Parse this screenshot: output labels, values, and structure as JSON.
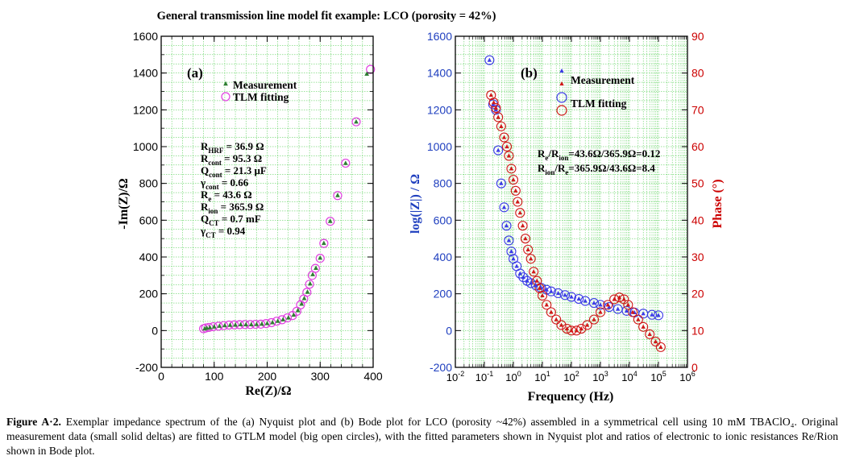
{
  "figure_title": "General transmission line model fit example:  LCO (porosity = 42%)",
  "caption": {
    "label": "Figure A·2.",
    "text": " Exemplar impedance spectrum of the (a) Nyquist plot and (b) Bode plot for LCO (porosity ~42%) assembled in a symmetrical cell using 10 mM TBAClO₄. Original measurement data (small solid deltas) are fitted to GTLM model (big open circles), with the fitted parameters shown in Nyquist plot and ratios of electronic to ionic resistances Re/Rion shown in Bode plot."
  },
  "colors": {
    "grid": "#3cc83c",
    "measurement_a": "#2e7d32",
    "fit_a": "#e040e0",
    "magnitude": "#3a3ae6",
    "phase": "#d01818",
    "phase_axis": "#cc0000",
    "mag_axis": "#1f3fbf"
  },
  "chart_data": [
    {
      "type": "scatter",
      "panel_label": "(a)",
      "xlabel": "Re(Z)/Ω",
      "ylabel": "-Im(Z)/Ω",
      "xlim": [
        0,
        400
      ],
      "ylim": [
        -200,
        1600
      ],
      "xticks": [
        0,
        100,
        200,
        300,
        400
      ],
      "yticks": [
        -200,
        0,
        200,
        400,
        600,
        800,
        1000,
        1200,
        1400,
        1600
      ],
      "grid": true,
      "legend": [
        "Measurement",
        "TLM fitting"
      ],
      "legend_position": "top-left",
      "parameters": [
        {
          "name": "R",
          "sub": "HRF",
          "value": " = 36.9 Ω"
        },
        {
          "name": "R",
          "sub": "cont",
          "value": " = 95.3 Ω"
        },
        {
          "name": "Q",
          "sub": "cont",
          "value": " = 21.3 μF"
        },
        {
          "name": "γ",
          "sub": "cont",
          "value": " = 0.66"
        },
        {
          "name": "R",
          "sub": "e",
          "value": " = 43.6 Ω"
        },
        {
          "name": "R",
          "sub": "ion",
          "value": " = 365.9 Ω"
        },
        {
          "name": "Q",
          "sub": "CT",
          "value": " = 0.7 mF"
        },
        {
          "name": "γ",
          "sub": "CT",
          "value": " = 0.94"
        }
      ],
      "series": [
        {
          "name": "Measurement",
          "marker": "triangle",
          "points": [
            [
              82,
              10
            ],
            [
              86,
              14
            ],
            [
              92,
              17
            ],
            [
              100,
              21
            ],
            [
              110,
              25
            ],
            [
              120,
              28
            ],
            [
              130,
              30
            ],
            [
              140,
              31
            ],
            [
              150,
              33
            ],
            [
              160,
              33
            ],
            [
              170,
              33
            ],
            [
              180,
              34
            ],
            [
              190,
              36
            ],
            [
              200,
              39
            ],
            [
              210,
              44
            ],
            [
              220,
              52
            ],
            [
              230,
              60
            ],
            [
              240,
              70
            ],
            [
              250,
              85
            ],
            [
              258,
              110
            ],
            [
              265,
              145
            ],
            [
              270,
              175
            ],
            [
              276,
              210
            ],
            [
              281,
              255
            ],
            [
              286,
              305
            ],
            [
              292,
              340
            ],
            [
              300,
              395
            ],
            [
              307,
              475
            ],
            [
              319,
              595
            ],
            [
              333,
              735
            ],
            [
              348,
              910
            ],
            [
              368,
              1135
            ],
            [
              388,
              1395
            ]
          ]
        },
        {
          "name": "TLM fitting",
          "marker": "circle",
          "points": [
            [
              80,
              10
            ],
            [
              84,
              14
            ],
            [
              90,
              17
            ],
            [
              98,
              21
            ],
            [
              108,
              24
            ],
            [
              118,
              27
            ],
            [
              128,
              30
            ],
            [
              138,
              31
            ],
            [
              148,
              32
            ],
            [
              158,
              33
            ],
            [
              168,
              33
            ],
            [
              178,
              34
            ],
            [
              188,
              35
            ],
            [
              198,
              38
            ],
            [
              208,
              43
            ],
            [
              218,
              51
            ],
            [
              228,
              59
            ],
            [
              238,
              69
            ],
            [
              248,
              82
            ],
            [
              256,
              105
            ],
            [
              263,
              140
            ],
            [
              269,
              172
            ],
            [
              275,
              208
            ],
            [
              280,
              252
            ],
            [
              285,
              300
            ],
            [
              291,
              338
            ],
            [
              300,
              393
            ],
            [
              307,
              474
            ],
            [
              319,
              594
            ],
            [
              333,
              734
            ],
            [
              348,
              910
            ],
            [
              368,
              1135
            ],
            [
              395,
              1420
            ]
          ]
        }
      ]
    },
    {
      "type": "scatter",
      "panel_label": "(b)",
      "xlabel": "Frequency (Hz)",
      "ylabel": "log(|Z|) / Ω",
      "y2label": "Phase (°)",
      "x_scale": "log",
      "xlim": [
        0.01,
        1000000
      ],
      "xtick_labels": [
        "10-2",
        "10-1",
        "100",
        "101",
        "102",
        "103",
        "104",
        "105",
        "106"
      ],
      "ylim": [
        -200,
        1600
      ],
      "yticks": [
        -200,
        0,
        200,
        400,
        600,
        800,
        1000,
        1200,
        1400,
        1600
      ],
      "y2lim": [
        0,
        90
      ],
      "y2ticks": [
        0,
        10,
        20,
        30,
        40,
        50,
        60,
        70,
        80,
        90
      ],
      "grid": true,
      "legend": [
        "Measurement",
        "TLM fitting"
      ],
      "legend_position": "top-right",
      "ratios": [
        {
          "a": "R",
          "a_sub": "e",
          "b": "/R",
          "b_sub": "ion",
          "value": "=43.6Ω/365.9Ω=0.12"
        },
        {
          "a": "R",
          "a_sub": "ion",
          "b": "/R",
          "b_sub": "e",
          "value": "=365.9Ω/43.6Ω=8.4"
        }
      ],
      "series": [
        {
          "name": "|Z|",
          "axis": "left",
          "points": [
            [
              0.15,
              1470
            ],
            [
              0.2,
              1230
            ],
            [
              0.25,
              1200
            ],
            [
              0.3,
              980
            ],
            [
              0.38,
              800
            ],
            [
              0.48,
              670
            ],
            [
              0.58,
              570
            ],
            [
              0.7,
              490
            ],
            [
              0.85,
              430
            ],
            [
              1.0,
              390
            ],
            [
              1.3,
              350
            ],
            [
              1.7,
              310
            ],
            [
              2.2,
              290
            ],
            [
              3,
              270
            ],
            [
              4,
              258
            ],
            [
              6,
              245
            ],
            [
              9,
              233
            ],
            [
              14,
              222
            ],
            [
              20,
              213
            ],
            [
              35,
              203
            ],
            [
              60,
              193
            ],
            [
              100,
              183
            ],
            [
              180,
              172
            ],
            [
              300,
              161
            ],
            [
              600,
              150
            ],
            [
              1000,
              140
            ],
            [
              2000,
              128
            ],
            [
              4000,
              117
            ],
            [
              8000,
              107
            ],
            [
              15000,
              98
            ],
            [
              30000,
              92
            ],
            [
              60000,
              86
            ],
            [
              100000,
              83
            ]
          ]
        },
        {
          "name": "Phase",
          "axis": "right",
          "points": [
            [
              0.17,
              74
            ],
            [
              0.21,
              72
            ],
            [
              0.25,
              70.5
            ],
            [
              0.3,
              68
            ],
            [
              0.38,
              65.5
            ],
            [
              0.48,
              62.5
            ],
            [
              0.6,
              60
            ],
            [
              0.7,
              57.5
            ],
            [
              0.85,
              54
            ],
            [
              1.0,
              51
            ],
            [
              1.2,
              48
            ],
            [
              1.4,
              45
            ],
            [
              1.7,
              42
            ],
            [
              2.1,
              38.5
            ],
            [
              2.6,
              35
            ],
            [
              3.2,
              32
            ],
            [
              4,
              29.5
            ],
            [
              5,
              26
            ],
            [
              6.5,
              23.5
            ],
            [
              8,
              21.5
            ],
            [
              10,
              19.5
            ],
            [
              14,
              17
            ],
            [
              20,
              15
            ],
            [
              30,
              13
            ],
            [
              45,
              11.5
            ],
            [
              70,
              10.5
            ],
            [
              100,
              10
            ],
            [
              150,
              10
            ],
            [
              220,
              10.5
            ],
            [
              350,
              11.5
            ],
            [
              600,
              13
            ],
            [
              1000,
              15
            ],
            [
              1800,
              17
            ],
            [
              3000,
              18.5
            ],
            [
              4500,
              19
            ],
            [
              6500,
              18.5
            ],
            [
              9000,
              17
            ],
            [
              13000,
              15
            ],
            [
              20000,
              13
            ],
            [
              30000,
              11
            ],
            [
              50000,
              9
            ],
            [
              80000,
              7
            ],
            [
              120000,
              5.5
            ]
          ]
        }
      ]
    }
  ]
}
